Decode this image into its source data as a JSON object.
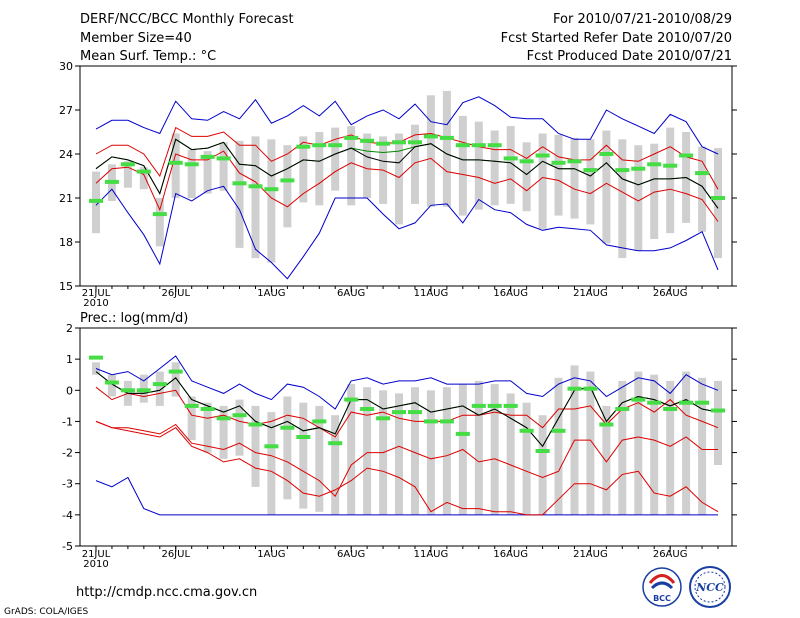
{
  "header": {
    "title": "DERF/NCC/BCC Monthly Forecast",
    "member_size": "Member Size=40",
    "variable": "Mean Surf. Temp.: °C",
    "period": "For 2010/07/21-2010/08/29",
    "started": "Fcst Started Refer Date 2010/07/20",
    "produced": "Fcst Produced Date 2010/07/21"
  },
  "footer": {
    "url": "http://cmdp.ncc.cma.gov.cn",
    "credit": "GrADS: COLA/IGES",
    "logo_bcc": "BCC",
    "logo_ncc": "NCC"
  },
  "colors": {
    "max_min": "#0000cc",
    "spread": "#dd0000",
    "mean": "#000000",
    "median": "#008800",
    "marker": "#44dd44",
    "box": "#cfcfcf"
  },
  "chart_data": [
    {
      "type": "box-ensemble",
      "title": "Mean Surf. Temp.: °C",
      "ylim": [
        15,
        30
      ],
      "yticks": [
        15,
        18,
        21,
        24,
        27,
        30
      ],
      "x_tick_labels": [
        "21JUL",
        "26JUL",
        "1AUG",
        "6AUG",
        "11AUG",
        "16AUG",
        "21AUG",
        "26AUG"
      ],
      "x_tick_days": [
        1,
        6,
        12,
        17,
        22,
        27,
        32,
        37
      ],
      "x_year_label": "2010",
      "days": [
        1,
        2,
        3,
        4,
        5,
        6,
        7,
        8,
        9,
        10,
        11,
        12,
        13,
        14,
        15,
        16,
        17,
        18,
        19,
        20,
        21,
        22,
        23,
        24,
        25,
        26,
        27,
        28,
        29,
        30,
        31,
        32,
        33,
        34,
        35,
        36,
        37,
        38,
        39,
        40
      ],
      "series": [
        {
          "name": "max",
          "values": [
            25.7,
            26.3,
            26.3,
            25.8,
            25.4,
            27.6,
            26.4,
            26.3,
            26.9,
            26.4,
            27.7,
            26.1,
            26.6,
            27.3,
            26.6,
            27.6,
            26.0,
            26.6,
            27.0,
            26.4,
            27.4,
            26.2,
            26.0,
            27.5,
            27.9,
            27.3,
            26.5,
            26.4,
            26.4,
            25.4,
            25.0,
            25.0,
            27.0,
            26.4,
            25.9,
            25.4,
            26.7,
            26.2,
            24.5,
            24.0
          ]
        },
        {
          "name": "upper",
          "values": [
            24.0,
            24.6,
            24.6,
            24.0,
            22.5,
            25.8,
            25.2,
            25.2,
            25.5,
            24.6,
            24.6,
            23.5,
            24.0,
            24.8,
            24.6,
            25.0,
            25.3,
            24.8,
            24.7,
            24.8,
            25.3,
            25.4,
            25.1,
            24.8,
            24.5,
            24.3,
            24.3,
            23.7,
            24.5,
            23.8,
            23.6,
            23.6,
            24.6,
            23.6,
            23.5,
            24.0,
            24.5,
            23.8,
            23.5,
            21.6
          ]
        },
        {
          "name": "mean",
          "values": [
            23.0,
            23.8,
            23.6,
            23.2,
            21.3,
            25.0,
            24.3,
            24.4,
            24.8,
            23.3,
            23.2,
            22.5,
            23.0,
            23.6,
            23.5,
            24.0,
            24.4,
            23.8,
            23.5,
            23.4,
            24.5,
            24.7,
            24.0,
            23.6,
            23.6,
            23.5,
            23.4,
            22.6,
            23.5,
            23.0,
            23.0,
            22.5,
            23.4,
            22.3,
            21.9,
            22.3,
            22.3,
            22.4,
            21.8,
            20.3
          ]
        },
        {
          "name": "median",
          "values": [
            23.0,
            23.8,
            23.6,
            23.2,
            21.3,
            25.0,
            24.3,
            24.4,
            24.8,
            23.3,
            23.2,
            22.5,
            23.0,
            23.6,
            23.5,
            24.0,
            24.4,
            24.2,
            24.1,
            24.2,
            24.5,
            24.7,
            24.0,
            23.6,
            23.6,
            23.5,
            23.4,
            22.6,
            23.5,
            23.0,
            23.0,
            22.5,
            23.4,
            22.3,
            21.9,
            22.3,
            22.3,
            22.4,
            21.8,
            20.3
          ]
        },
        {
          "name": "lower",
          "values": [
            22.0,
            23.0,
            23.1,
            22.6,
            20.2,
            24.0,
            23.6,
            23.6,
            24.2,
            22.7,
            22.1,
            21.0,
            20.4,
            21.3,
            22.0,
            22.8,
            23.4,
            23.0,
            22.9,
            22.4,
            23.4,
            23.7,
            22.8,
            22.6,
            22.4,
            22.0,
            22.3,
            21.5,
            22.4,
            22.2,
            21.6,
            21.3,
            22.0,
            21.4,
            20.8,
            21.4,
            21.6,
            21.3,
            20.9,
            19.4
          ]
        },
        {
          "name": "min",
          "values": [
            20.5,
            21.6,
            20.0,
            18.5,
            16.5,
            21.3,
            20.8,
            21.5,
            21.8,
            20.2,
            17.5,
            16.6,
            15.5,
            17.0,
            18.6,
            21.0,
            21.0,
            21.0,
            19.9,
            18.9,
            19.3,
            20.5,
            20.6,
            19.3,
            20.9,
            20.2,
            20.0,
            19.2,
            18.8,
            19.0,
            18.9,
            18.8,
            17.8,
            17.6,
            17.4,
            17.4,
            17.6,
            18.1,
            18.7,
            16.1
          ]
        },
        {
          "name": "box_top",
          "values": [
            22.8,
            23.3,
            23.5,
            23.1,
            21.0,
            25.4,
            24.3,
            24.2,
            24.8,
            24.9,
            25.2,
            25.0,
            24.6,
            25.2,
            25.5,
            25.8,
            25.9,
            25.4,
            25.2,
            25.4,
            26.0,
            28.0,
            28.3,
            26.6,
            26.2,
            25.6,
            25.9,
            24.8,
            25.4,
            25.3,
            25.1,
            25.0,
            25.6,
            25.0,
            24.6,
            24.7,
            25.8,
            25.5,
            24.5,
            24.4
          ]
        },
        {
          "name": "box_bottom",
          "values": [
            18.6,
            20.8,
            21.7,
            21.6,
            17.7,
            21.0,
            21.0,
            21.3,
            21.5,
            17.6,
            16.9,
            16.6,
            19.0,
            20.7,
            20.5,
            21.5,
            20.5,
            21.0,
            20.6,
            19.2,
            20.6,
            20.4,
            20.4,
            19.8,
            20.2,
            20.5,
            20.6,
            20.1,
            18.9,
            19.8,
            19.6,
            19.2,
            17.9,
            16.9,
            17.4,
            18.2,
            18.6,
            19.3,
            18.7,
            16.9
          ]
        },
        {
          "name": "marker",
          "values": [
            20.8,
            22.1,
            23.3,
            22.8,
            19.9,
            23.4,
            23.3,
            23.8,
            23.7,
            22.0,
            21.8,
            21.6,
            22.2,
            24.5,
            24.6,
            24.6,
            25.1,
            24.9,
            24.7,
            24.8,
            24.8,
            25.2,
            25.1,
            24.6,
            24.6,
            24.6,
            23.7,
            23.5,
            23.9,
            23.4,
            23.5,
            22.9,
            24.0,
            22.9,
            23.0,
            23.3,
            23.2,
            23.9,
            22.7,
            21.0
          ]
        }
      ]
    },
    {
      "type": "box-ensemble",
      "title": "Prec.: log(mm/d)",
      "ylim": [
        -5,
        2
      ],
      "yticks": [
        -5,
        -4,
        -3,
        -2,
        -1,
        0,
        1,
        2
      ],
      "x_tick_labels": [
        "21JUL",
        "26JUL",
        "1AUG",
        "6AUG",
        "11AUG",
        "16AUG",
        "21AUG",
        "26AUG"
      ],
      "x_tick_days": [
        1,
        6,
        12,
        17,
        22,
        27,
        32,
        37
      ],
      "x_year_label": "2010",
      "days": [
        1,
        2,
        3,
        4,
        5,
        6,
        7,
        8,
        9,
        10,
        11,
        12,
        13,
        14,
        15,
        16,
        17,
        18,
        19,
        20,
        21,
        22,
        23,
        24,
        25,
        26,
        27,
        28,
        29,
        30,
        31,
        32,
        33,
        34,
        35,
        36,
        37,
        38,
        39,
        40
      ],
      "series": [
        {
          "name": "max",
          "values": [
            0.7,
            0.5,
            0.6,
            0.3,
            0.7,
            1.1,
            0.3,
            0.1,
            -0.1,
            0.2,
            -0.1,
            -0.3,
            0.2,
            0.1,
            -0.2,
            -0.6,
            0.3,
            0.4,
            0.2,
            0.3,
            0.3,
            0.4,
            0.2,
            0.2,
            0.2,
            0.3,
            0.3,
            -0.1,
            -0.2,
            0.2,
            0.4,
            0.3,
            -0.2,
            0.1,
            0.4,
            0.3,
            -0.1,
            0.5,
            0.2,
            0.0
          ]
        },
        {
          "name": "upper",
          "values": [
            0.1,
            -0.3,
            -0.1,
            -0.2,
            -0.1,
            0.0,
            -0.8,
            -0.9,
            -0.8,
            -1.0,
            -1.1,
            -1.0,
            -0.8,
            -0.9,
            -1.2,
            -1.5,
            -0.7,
            -0.8,
            -0.7,
            -0.9,
            -1.0,
            -1.0,
            -1.0,
            -0.8,
            -0.8,
            -0.7,
            -0.8,
            -0.8,
            -1.2,
            -0.6,
            -0.6,
            -0.5,
            -1.1,
            -0.6,
            -0.4,
            -0.7,
            -0.3,
            -0.8,
            -1.0,
            -1.2
          ]
        },
        {
          "name": "mean",
          "values": [
            0.6,
            0.2,
            -0.1,
            -0.1,
            0.0,
            0.4,
            -0.3,
            -0.5,
            -0.7,
            -0.5,
            -1.0,
            -1.2,
            -1.0,
            -1.3,
            -1.2,
            -1.4,
            -0.3,
            -0.3,
            -0.6,
            -0.5,
            -0.4,
            -0.7,
            -0.6,
            -0.5,
            -0.8,
            -0.6,
            -0.9,
            -1.2,
            -1.8,
            -0.9,
            0.0,
            0.1,
            -1.0,
            -0.4,
            -0.2,
            -0.3,
            -0.5,
            -0.3,
            -0.6,
            -0.7
          ]
        },
        {
          "name": "median",
          "values": [
            0.6,
            0.2,
            -0.1,
            -0.1,
            0.0,
            0.4,
            -0.3,
            -0.5,
            -0.7,
            -0.5,
            -1.0,
            -1.2,
            -1.0,
            -1.3,
            -1.2,
            -1.4,
            -0.3,
            -0.3,
            -0.6,
            -0.5,
            -0.4,
            -0.7,
            -0.6,
            -0.5,
            -0.8,
            -0.6,
            -0.9,
            -1.2,
            -1.8,
            -0.9,
            0.0,
            0.1,
            -1.0,
            -0.4,
            -0.2,
            -0.3,
            -0.5,
            -0.3,
            -0.6,
            -0.7
          ]
        },
        {
          "name": "lower",
          "values": [
            -1.0,
            -1.2,
            -1.2,
            -1.3,
            -1.4,
            -1.1,
            -1.7,
            -1.8,
            -1.9,
            -1.7,
            -2.0,
            -2.1,
            -2.3,
            -2.6,
            -2.9,
            -3.4,
            -2.4,
            -2.0,
            -2.0,
            -1.8,
            -2.0,
            -2.2,
            -2.1,
            -1.9,
            -2.3,
            -2.2,
            -2.4,
            -2.6,
            -2.8,
            -2.6,
            -1.6,
            -1.6,
            -2.3,
            -1.6,
            -1.5,
            -1.6,
            -1.8,
            -1.5,
            -1.9,
            -1.9
          ]
        },
        {
          "name": "min",
          "values": [
            -2.9,
            -3.1,
            -2.8,
            -3.8,
            -4.0,
            -4.0,
            -4.0,
            -4.0,
            -4.0,
            -4.0,
            -4.0,
            -4.0,
            -4.0,
            -4.0,
            -4.0,
            -4.0,
            -4.0,
            -4.0,
            -4.0,
            -4.0,
            -4.0,
            -4.0,
            -4.0,
            -4.0,
            -4.0,
            -4.0,
            -4.0,
            -4.0,
            -4.0,
            -4.0,
            -4.0,
            -4.0,
            -4.0,
            -4.0,
            -4.0,
            -4.0,
            -4.0,
            -4.0,
            -4.0,
            -4.0
          ]
        },
        {
          "name": "low",
          "values": [
            -1.0,
            -1.2,
            -1.3,
            -1.4,
            -1.5,
            -1.2,
            -1.8,
            -2.0,
            -2.3,
            -2.2,
            -2.5,
            -2.6,
            -2.9,
            -3.3,
            -3.4,
            -3.2,
            -2.9,
            -2.5,
            -2.6,
            -2.8,
            -3.1,
            -3.9,
            -3.6,
            -3.8,
            -3.8,
            -3.9,
            -3.9,
            -4.0,
            -4.0,
            -3.5,
            -3.0,
            -3.0,
            -3.2,
            -2.7,
            -2.6,
            -3.3,
            -3.4,
            -3.1,
            -3.6,
            -3.9
          ]
        },
        {
          "name": "box_top",
          "values": [
            0.9,
            0.5,
            0.3,
            0.5,
            0.6,
            0.9,
            -0.2,
            -0.4,
            -0.5,
            -0.3,
            -0.5,
            -0.7,
            -0.2,
            -0.4,
            -0.5,
            -0.8,
            0.2,
            0.1,
            0.0,
            -0.1,
            0.1,
            0.0,
            0.1,
            0.2,
            0.3,
            0.2,
            -0.1,
            -0.4,
            -0.8,
            0.4,
            0.8,
            0.6,
            -0.5,
            0.3,
            0.6,
            0.5,
            0.3,
            0.6,
            0.4,
            0.3
          ]
        },
        {
          "name": "box_bottom",
          "values": [
            0.5,
            -0.2,
            -0.5,
            -0.4,
            -0.5,
            -0.2,
            -1.6,
            -2.0,
            -2.2,
            -2.1,
            -3.1,
            -4.0,
            -3.5,
            -3.8,
            -3.9,
            -4.0,
            -4.0,
            -4.0,
            -4.0,
            -4.0,
            -4.0,
            -4.0,
            -4.0,
            -4.0,
            -4.0,
            -4.0,
            -4.0,
            -4.0,
            -4.0,
            -4.0,
            -4.0,
            -4.0,
            -4.0,
            -4.0,
            -4.0,
            -4.0,
            -4.0,
            -4.0,
            -4.0,
            -2.4
          ]
        },
        {
          "name": "marker",
          "values": [
            1.05,
            0.25,
            0.0,
            0.0,
            0.2,
            0.6,
            -0.5,
            -0.6,
            -0.9,
            -0.8,
            -1.1,
            -1.8,
            -1.2,
            -1.5,
            -1.0,
            -1.7,
            -0.3,
            -0.6,
            -0.9,
            -0.7,
            -0.7,
            -1.0,
            -1.0,
            -1.4,
            -0.5,
            -0.5,
            -0.5,
            -1.3,
            -1.95,
            -1.3,
            0.05,
            0.05,
            -1.1,
            -0.6,
            -0.3,
            -0.4,
            -0.6,
            -0.4,
            -0.4,
            -0.65
          ]
        }
      ]
    }
  ]
}
